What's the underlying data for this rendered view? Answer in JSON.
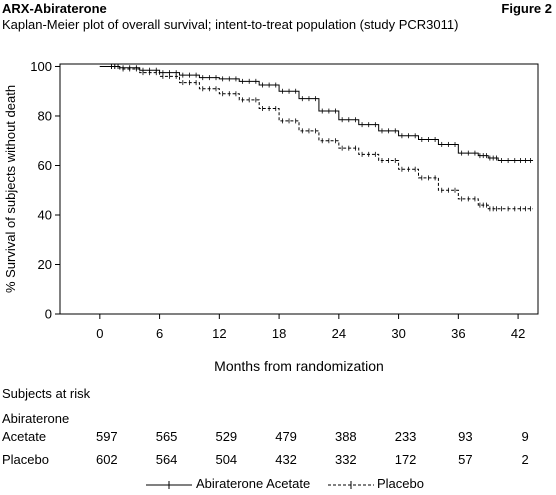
{
  "header": {
    "title": "ARX-Abiraterone",
    "figure_label": "Figure 2",
    "subtitle": "Kaplan-Meier plot of overall survival; intent-to-treat population (study PCR3011)"
  },
  "chart_data": {
    "type": "line",
    "xlabel": "Months from randomization",
    "ylabel": "% Survival of subjects without death",
    "xlim": [
      -4,
      44
    ],
    "ylim": [
      0,
      101
    ],
    "xticks": [
      0,
      6,
      12,
      18,
      24,
      30,
      36,
      42
    ],
    "yticks": [
      0,
      20,
      40,
      60,
      80,
      100
    ],
    "grid": false,
    "legend_position": "bottom",
    "series": [
      {
        "name": "Abiraterone Acetate",
        "line_style": "solid",
        "points": [
          [
            0,
            100
          ],
          [
            1,
            100
          ],
          [
            2,
            99.5
          ],
          [
            4,
            98.5
          ],
          [
            6,
            97.5
          ],
          [
            8,
            96.5
          ],
          [
            10,
            95.5
          ],
          [
            12,
            95
          ],
          [
            14,
            94
          ],
          [
            16,
            92.5
          ],
          [
            18,
            90
          ],
          [
            20,
            87
          ],
          [
            22,
            82
          ],
          [
            24,
            78.5
          ],
          [
            26,
            76.5
          ],
          [
            28,
            74
          ],
          [
            30,
            72
          ],
          [
            32,
            70.5
          ],
          [
            34,
            68.5
          ],
          [
            36,
            65
          ],
          [
            38,
            64
          ],
          [
            39,
            63
          ],
          [
            40,
            62
          ],
          [
            42,
            62
          ],
          [
            43.5,
            62
          ]
        ]
      },
      {
        "name": "Placebo",
        "line_style": "dashed",
        "points": [
          [
            0,
            100
          ],
          [
            1,
            100
          ],
          [
            2,
            99
          ],
          [
            4,
            97.5
          ],
          [
            6,
            96
          ],
          [
            8,
            93.5
          ],
          [
            10,
            91
          ],
          [
            12,
            89
          ],
          [
            14,
            86.5
          ],
          [
            16,
            83
          ],
          [
            18,
            78
          ],
          [
            20,
            74
          ],
          [
            22,
            70
          ],
          [
            24,
            67
          ],
          [
            26,
            64.5
          ],
          [
            28,
            62
          ],
          [
            30,
            58.5
          ],
          [
            32,
            55
          ],
          [
            34,
            50
          ],
          [
            36,
            46.5
          ],
          [
            38,
            44
          ],
          [
            39,
            42.5
          ],
          [
            40,
            42.5
          ],
          [
            42,
            42.5
          ],
          [
            43.5,
            42.5
          ]
        ]
      }
    ]
  },
  "risk_table": {
    "title": "Subjects at risk",
    "times": [
      0,
      6,
      12,
      18,
      24,
      30,
      36,
      42
    ],
    "rows": [
      {
        "name_line1": "Abiraterone",
        "name_line2": "Acetate",
        "values": [
          "597",
          "565",
          "529",
          "479",
          "388",
          "233",
          "93",
          "9"
        ]
      },
      {
        "name_line1": "Placebo",
        "name_line2": "",
        "values": [
          "602",
          "564",
          "504",
          "432",
          "332",
          "172",
          "57",
          "2"
        ]
      }
    ]
  },
  "legend": {
    "items": [
      "Abiraterone Acetate",
      "Placebo"
    ]
  }
}
